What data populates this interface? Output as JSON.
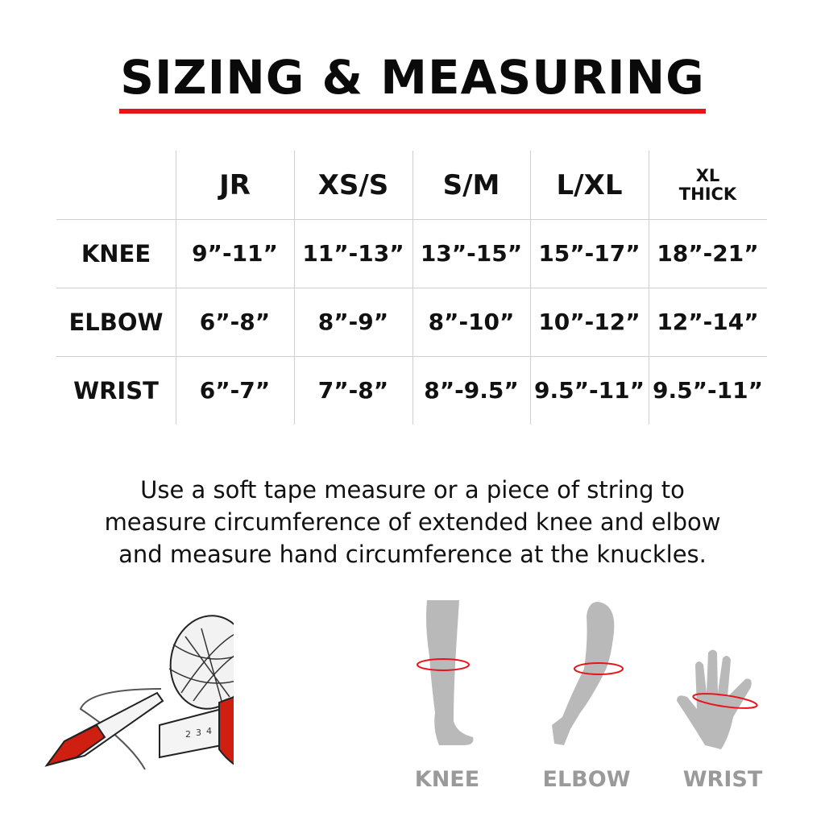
{
  "title": "SIZING & MEASURING",
  "colors": {
    "accent": "#e8141b",
    "figure_gray": "#b9b9b9",
    "label_gray": "#9a9a9a"
  },
  "table": {
    "columns": [
      "JR",
      "XS/S",
      "S/M",
      "L/XL"
    ],
    "last_column": {
      "line1": "XL",
      "line2": "THICK"
    },
    "rows": [
      {
        "label": "KNEE",
        "values": [
          "9”-11”",
          "11”-13”",
          "13”-15”",
          "15”-17”",
          "18”-21”"
        ]
      },
      {
        "label": "ELBOW",
        "values": [
          "6”-8”",
          "8”-9”",
          "8”-10”",
          "10”-12”",
          "12”-14”"
        ]
      },
      {
        "label": "WRIST",
        "values": [
          "6”-7”",
          "7”-8”",
          "8”-9.5”",
          "9.5”-11”",
          "9.5”-11”"
        ]
      }
    ]
  },
  "instructions": [
    "Use a soft tape measure or a piece of string to",
    "measure circumference of extended knee and elbow",
    "and measure hand circumference at the knuckles."
  ],
  "illustrations": {
    "tools_icons": [
      "string-ball-icon",
      "marker-icon",
      "tape-measure-icon"
    ],
    "tape_numbers": [
      "2",
      "3",
      "4"
    ],
    "figures": [
      {
        "icon": "leg-icon",
        "label": "KNEE"
      },
      {
        "icon": "arm-icon",
        "label": "ELBOW"
      },
      {
        "icon": "hand-icon",
        "label": "WRIST"
      }
    ]
  }
}
